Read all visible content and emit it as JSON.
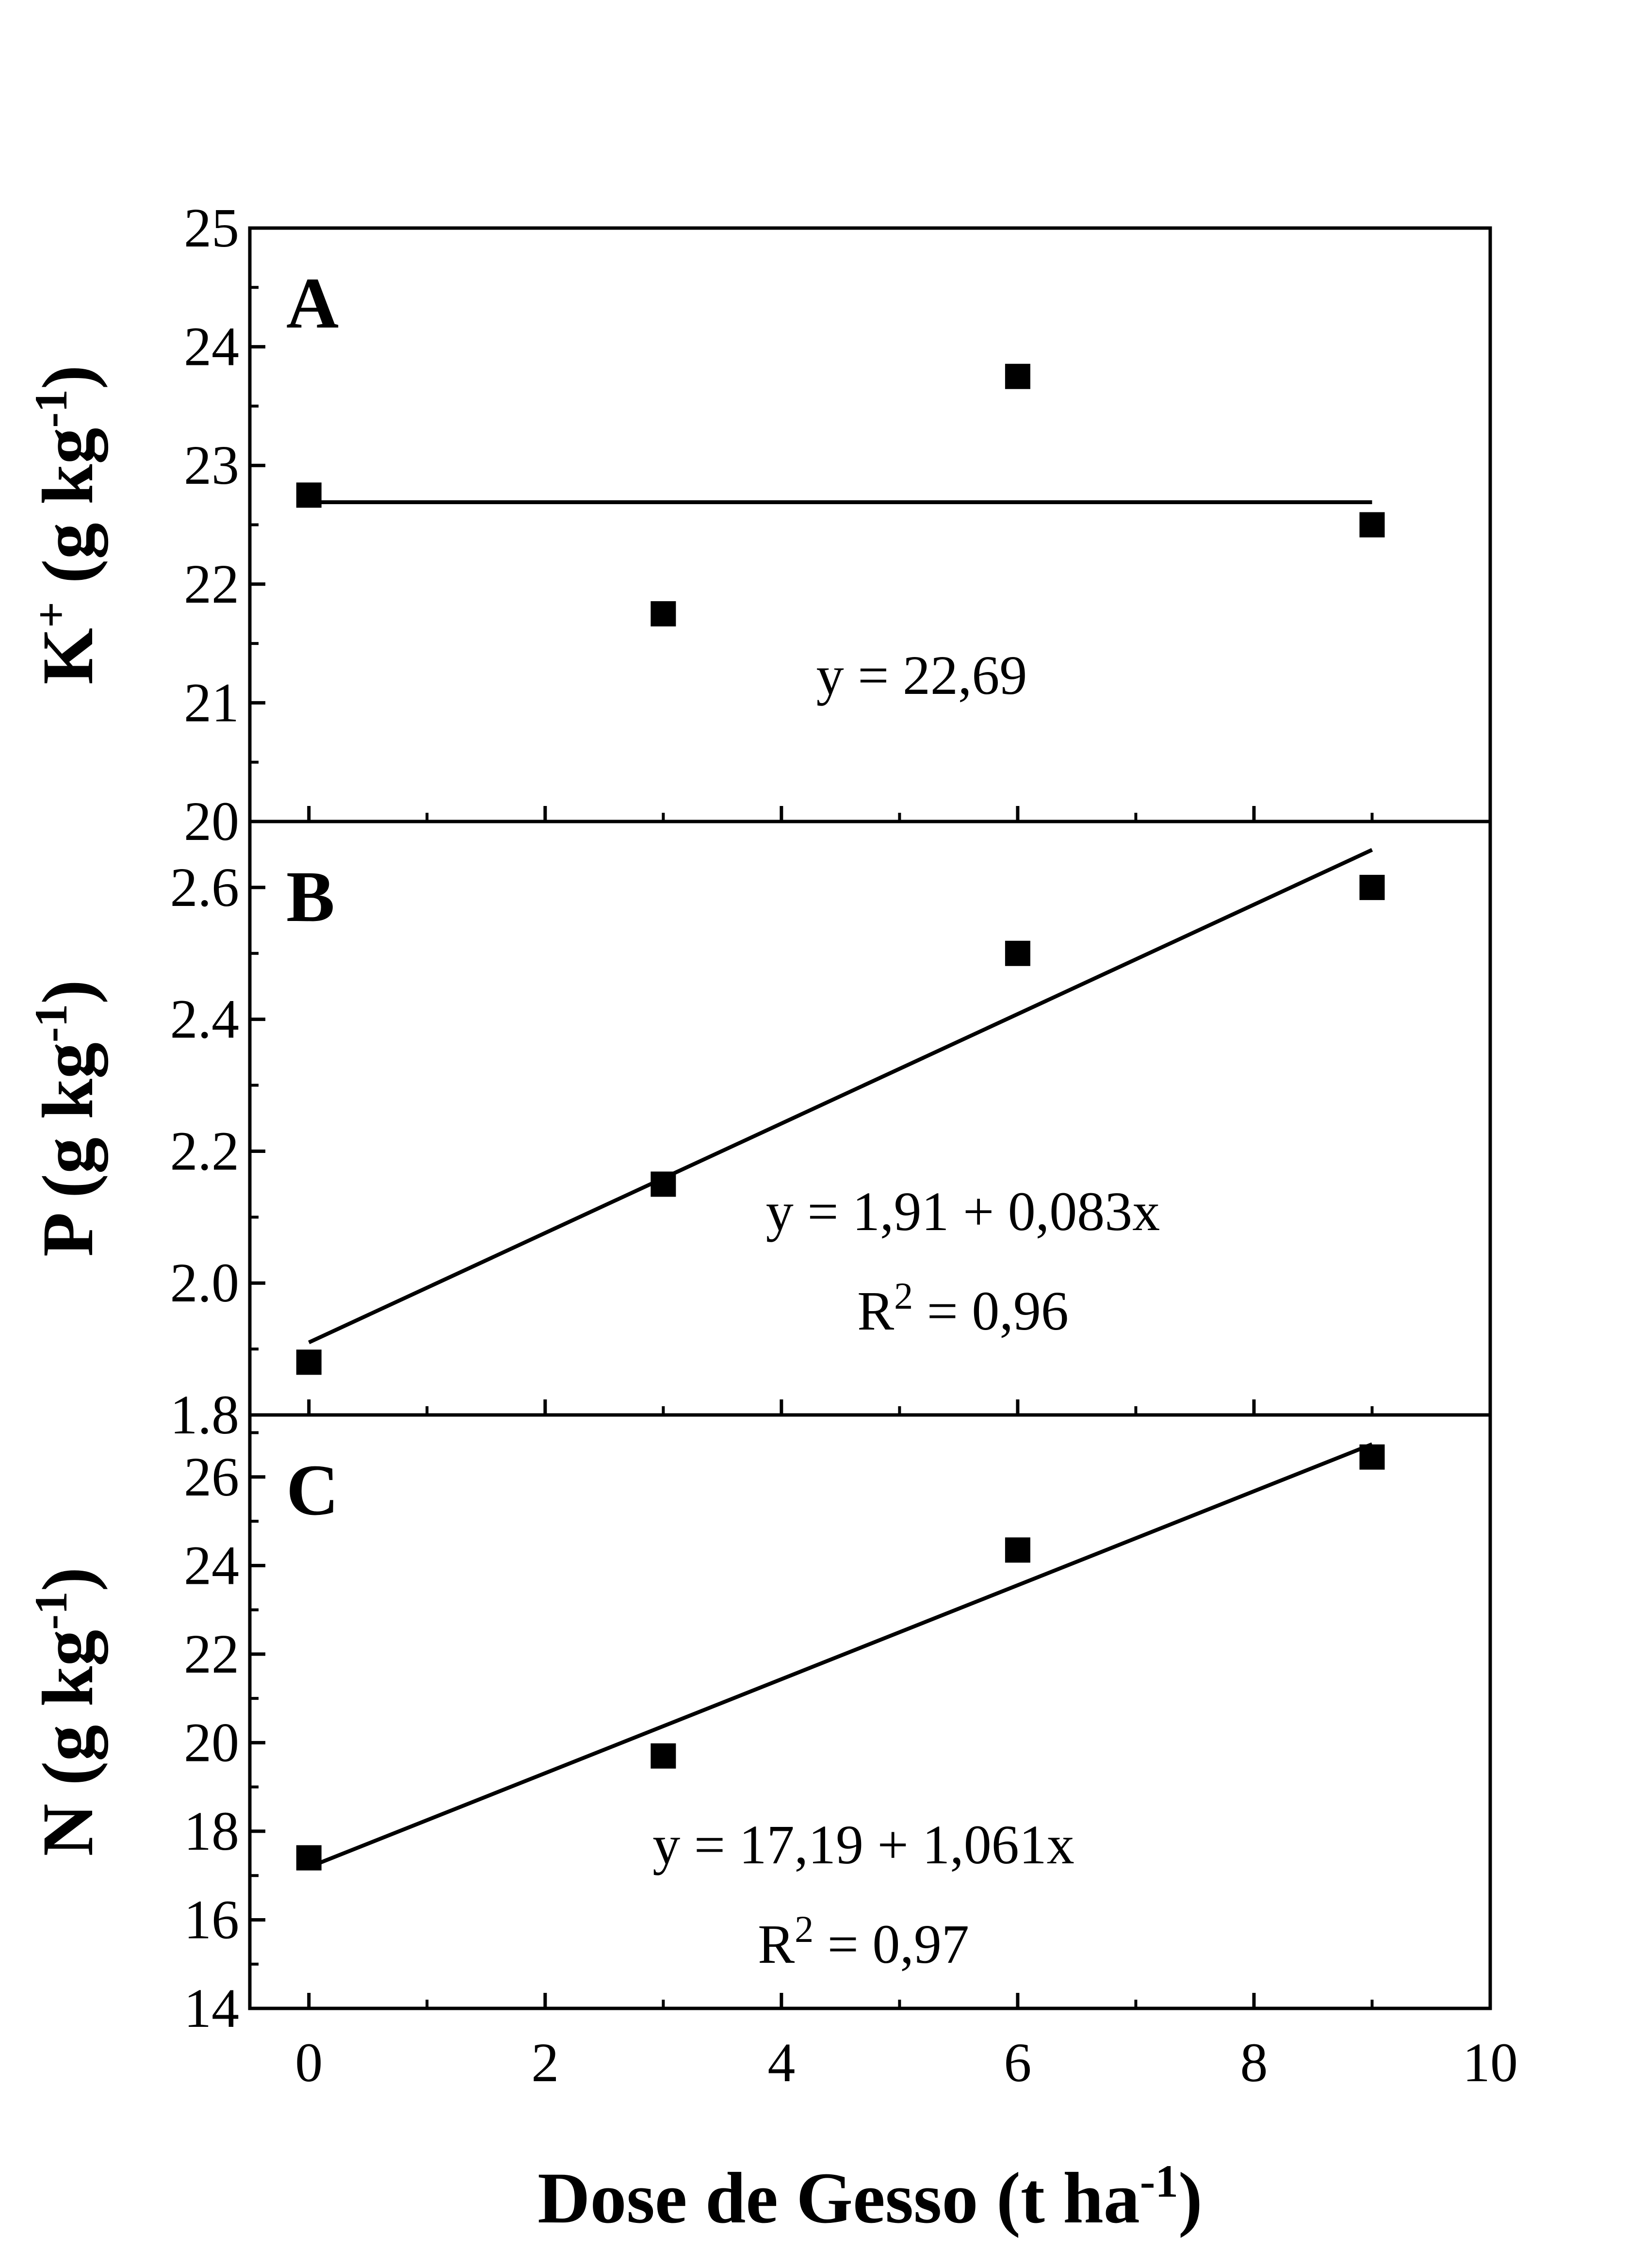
{
  "chart_data": {
    "type": "scatter",
    "x_axis": {
      "label": "Dose de Gesso (t ha",
      "label_superscript": "-1",
      "label_suffix": ")",
      "range": [
        -0.5,
        10
      ],
      "ticks": [
        0,
        2,
        4,
        6,
        8,
        10
      ],
      "tick_labels": [
        "0",
        "2",
        "4",
        "6",
        "8",
        "10"
      ],
      "minor_ticks": [
        1,
        3,
        5,
        7,
        9
      ]
    },
    "panels": [
      {
        "id": "A",
        "letter": "A",
        "ylabel_main": "K",
        "ylabel_super": "+",
        "ylabel_unit": " (g kg",
        "ylabel_unit_super": "-1",
        "ylabel_close": ")",
        "ylim": [
          20,
          25
        ],
        "ticks": [
          20,
          21,
          22,
          23,
          24,
          25
        ],
        "tick_labels": [
          "20",
          "21",
          "22",
          "23",
          "24",
          "25"
        ],
        "minor_ticks": [
          20.5,
          21.5,
          22.5,
          23.5,
          24.5
        ],
        "points": [
          {
            "x": 0,
            "y": 22.75
          },
          {
            "x": 3,
            "y": 21.75
          },
          {
            "x": 6,
            "y": 23.75
          },
          {
            "x": 9,
            "y": 22.5
          }
        ],
        "fit": {
          "intercept": 22.69,
          "slope": 0,
          "x": [
            0,
            9
          ]
        },
        "equation_text": "y = 22,69",
        "r2_text": null
      },
      {
        "id": "B",
        "letter": "B",
        "ylabel_main": "P",
        "ylabel_super": "",
        "ylabel_unit": " (g kg",
        "ylabel_unit_super": "-1",
        "ylabel_close": ")",
        "ylim": [
          1.8,
          2.7
        ],
        "ticks": [
          1.8,
          2.0,
          2.2,
          2.4,
          2.6
        ],
        "tick_labels": [
          "1.8",
          "2.0",
          "2.2",
          "2.4",
          "2.6"
        ],
        "minor_ticks": [
          1.9,
          2.1,
          2.3,
          2.5
        ],
        "points": [
          {
            "x": 0,
            "y": 1.88
          },
          {
            "x": 3,
            "y": 2.15
          },
          {
            "x": 6,
            "y": 2.5
          },
          {
            "x": 9,
            "y": 2.6
          }
        ],
        "fit": {
          "intercept": 1.91,
          "slope": 0.083,
          "x": [
            0,
            9
          ]
        },
        "equation_text": "y = 1,91 + 0,083x",
        "r2_text": {
          "pre": "R",
          "sup": "2",
          "post": " = 0,96"
        }
      },
      {
        "id": "C",
        "letter": "C",
        "ylabel_main": "N",
        "ylabel_super": "",
        "ylabel_unit": " (g kg",
        "ylabel_unit_super": "-1",
        "ylabel_close": ")",
        "ylim": [
          14,
          27.4
        ],
        "ticks": [
          14,
          16,
          18,
          20,
          22,
          24,
          26
        ],
        "tick_labels": [
          "14",
          "16",
          "18",
          "20",
          "22",
          "24",
          "26"
        ],
        "minor_ticks": [
          15,
          17,
          19,
          21,
          23,
          25,
          27
        ],
        "points": [
          {
            "x": 0,
            "y": 17.4
          },
          {
            "x": 3,
            "y": 19.7
          },
          {
            "x": 6,
            "y": 24.35
          },
          {
            "x": 9,
            "y": 26.45
          }
        ],
        "fit": {
          "intercept": 17.19,
          "slope": 1.061,
          "x": [
            0,
            9
          ]
        },
        "equation_text": "y = 17,19 + 1,061x",
        "r2_text": {
          "pre": "R",
          "sup": "2",
          "post": " = 0,97"
        }
      }
    ]
  }
}
